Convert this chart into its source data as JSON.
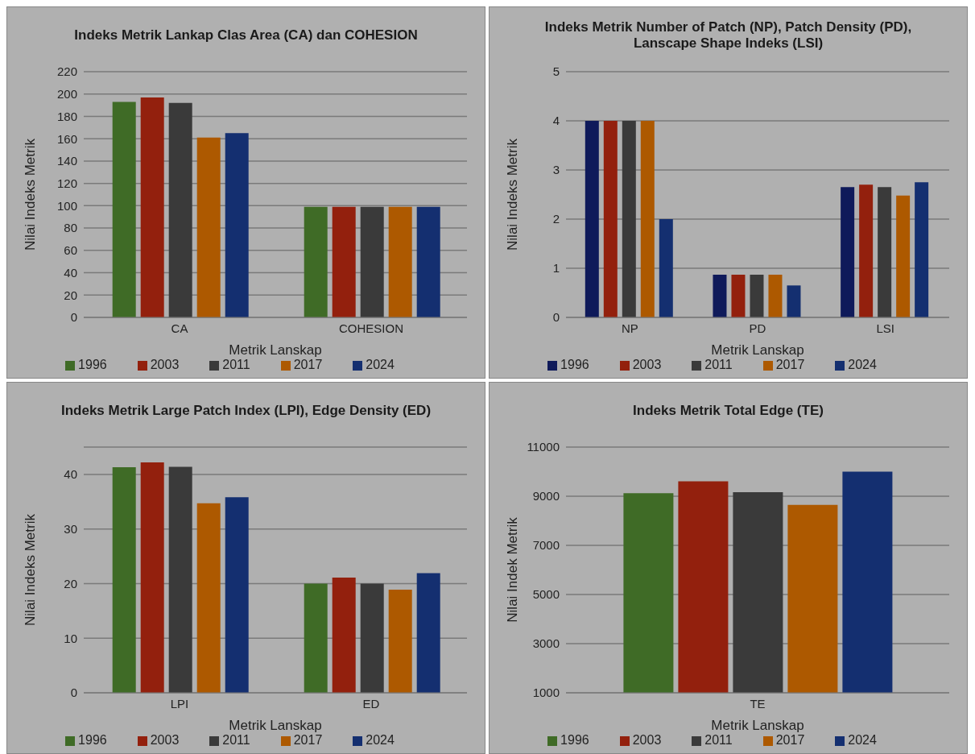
{
  "chart_data": [
    {
      "type": "bar",
      "title": "Indeks Metrik Lankap Clas Area (CA) dan COHESION",
      "xlabel": "Metrik Lanskap",
      "ylabel": "Nilai Indeks Metrik",
      "categories": [
        "CA",
        "COHESION"
      ],
      "series": [
        {
          "name": "1996",
          "color": "#3f6b26",
          "values": [
            193,
            99
          ]
        },
        {
          "name": "2003",
          "color": "#93200d",
          "values": [
            197,
            99
          ]
        },
        {
          "name": "2011",
          "color": "#3a3a3a",
          "values": [
            192,
            99
          ]
        },
        {
          "name": "2017",
          "color": "#ad5900",
          "values": [
            161,
            99
          ]
        },
        {
          "name": "2024",
          "color": "#142f70",
          "values": [
            165,
            99
          ]
        }
      ],
      "ylim": [
        0,
        220
      ],
      "yticks": [
        0,
        20,
        40,
        60,
        80,
        100,
        120,
        140,
        160,
        180,
        200,
        220
      ],
      "grid": "y",
      "legend": "bottom"
    },
    {
      "type": "bar",
      "title": "Indeks Metrik Number of Patch (NP), Patch Density (PD), Lanscape Shape Indeks (LSI)",
      "xlabel": "Metrik Lanskap",
      "ylabel": "Nilai Indeks Metrik",
      "categories": [
        "NP",
        "PD",
        "LSI"
      ],
      "series": [
        {
          "name": "1996",
          "color": "#0f1a5a",
          "values": [
            4,
            0.87,
            2.65
          ]
        },
        {
          "name": "2003",
          "color": "#93200d",
          "values": [
            4,
            0.87,
            2.7
          ]
        },
        {
          "name": "2011",
          "color": "#3a3a3a",
          "values": [
            4,
            0.87,
            2.65
          ]
        },
        {
          "name": "2017",
          "color": "#ad5900",
          "values": [
            4,
            0.87,
            2.48
          ]
        },
        {
          "name": "2024",
          "color": "#142f70",
          "values": [
            2,
            0.65,
            2.75
          ]
        }
      ],
      "ylim": [
        0,
        5
      ],
      "yticks": [
        0,
        1,
        2,
        3,
        4,
        5
      ],
      "grid": "y",
      "legend": "bottom"
    },
    {
      "type": "bar",
      "title": "Indeks Metrik Large Patch Index (LPI), Edge Density (ED)",
      "xlabel": "Metrik Lanskap",
      "ylabel": "Nilai Indeks Metrik",
      "categories": [
        "LPI",
        "ED"
      ],
      "series": [
        {
          "name": "1996",
          "color": "#3f6b26",
          "values": [
            41.3,
            20
          ]
        },
        {
          "name": "2003",
          "color": "#93200d",
          "values": [
            42.2,
            21.1
          ]
        },
        {
          "name": "2011",
          "color": "#3a3a3a",
          "values": [
            41.4,
            20
          ]
        },
        {
          "name": "2017",
          "color": "#ad5900",
          "values": [
            34.7,
            18.9
          ]
        },
        {
          "name": "2024",
          "color": "#142f70",
          "values": [
            35.8,
            21.9
          ]
        }
      ],
      "ylim": [
        0,
        45
      ],
      "yticks": [
        0,
        10,
        20,
        30,
        40
      ],
      "grid": "y",
      "legend": "bottom"
    },
    {
      "type": "bar",
      "title": "Indeks Metrik Total Edge (TE)",
      "xlabel": "Metrik Lanskap",
      "ylabel": "Nilai Indek Metrik",
      "categories": [
        "TE"
      ],
      "series": [
        {
          "name": "1996",
          "color": "#3f6b26",
          "values": [
            9120
          ]
        },
        {
          "name": "2003",
          "color": "#93200d",
          "values": [
            9610
          ]
        },
        {
          "name": "2011",
          "color": "#3a3a3a",
          "values": [
            9160
          ]
        },
        {
          "name": "2017",
          "color": "#ad5900",
          "values": [
            8650
          ]
        },
        {
          "name": "2024",
          "color": "#142f70",
          "values": [
            10000
          ]
        }
      ],
      "ylim": [
        1000,
        11000
      ],
      "yticks": [
        1000,
        3000,
        5000,
        7000,
        9000,
        11000
      ],
      "grid": "y",
      "legend": "bottom"
    }
  ]
}
